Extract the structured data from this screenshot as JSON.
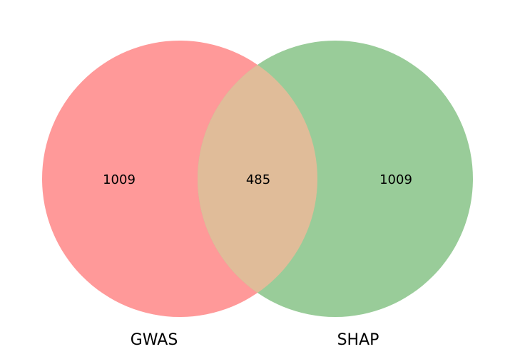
{
  "chart_data": {
    "type": "venn",
    "sets": [
      {
        "name": "GWAS",
        "color": "#ff9999"
      },
      {
        "name": "SHAP",
        "color": "#99cc99"
      }
    ],
    "overlap_color": "#e0bc99",
    "regions": {
      "only_left": "1009",
      "intersection": "485",
      "only_right": "1009"
    }
  }
}
